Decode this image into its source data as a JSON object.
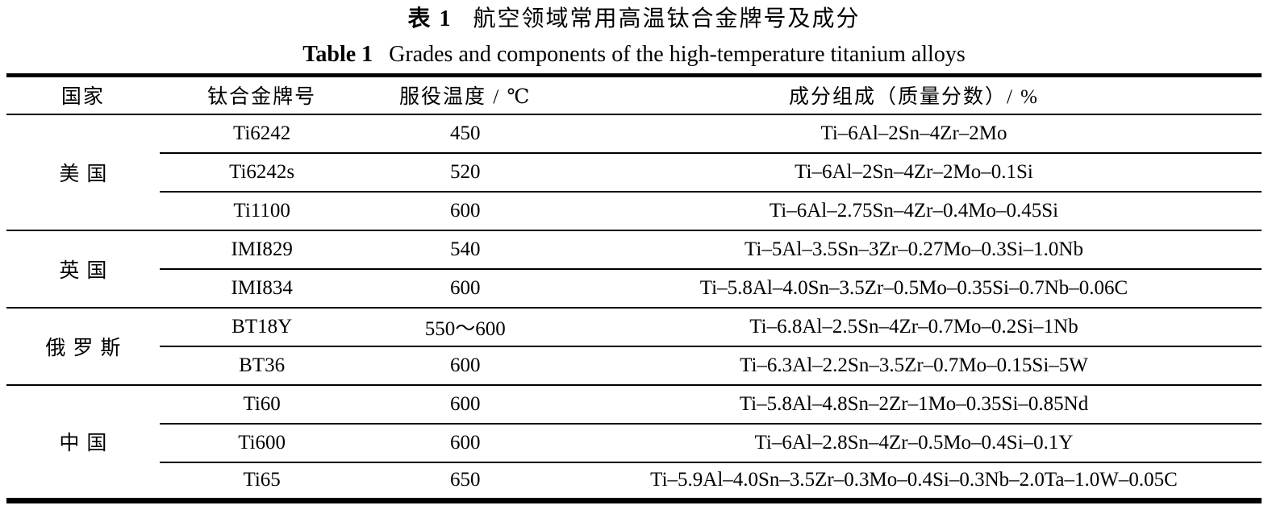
{
  "title": {
    "zh_label": "表 1",
    "zh_text": "航空领域常用高温钛合金牌号及成分",
    "en_label": "Table 1",
    "en_text": "Grades and components of the high-temperature titanium alloys"
  },
  "table": {
    "headers": [
      "国家",
      "钛合金牌号",
      "服役温度 / ℃",
      "成分组成（质量分数）/ %"
    ],
    "groups": [
      {
        "country": "美国",
        "rows": [
          {
            "grade": "Ti6242",
            "temp": "450",
            "composition": "Ti–6Al–2Sn–4Zr–2Mo"
          },
          {
            "grade": "Ti6242s",
            "temp": "520",
            "composition": "Ti–6Al–2Sn–4Zr–2Mo–0.1Si"
          },
          {
            "grade": "Ti1100",
            "temp": "600",
            "composition": "Ti–6Al–2.75Sn–4Zr–0.4Mo–0.45Si"
          }
        ]
      },
      {
        "country": "英国",
        "rows": [
          {
            "grade": "IMI829",
            "temp": "540",
            "composition": "Ti–5Al–3.5Sn–3Zr–0.27Mo–0.3Si–1.0Nb"
          },
          {
            "grade": "IMI834",
            "temp": "600",
            "composition": "Ti–5.8Al–4.0Sn–3.5Zr–0.5Mo–0.35Si–0.7Nb–0.06C"
          }
        ]
      },
      {
        "country": "俄罗斯",
        "rows": [
          {
            "grade": "BT18Y",
            "temp": "550～600",
            "composition": "Ti–6.8Al–2.5Sn–4Zr–0.7Mo–0.2Si–1Nb"
          },
          {
            "grade": "BT36",
            "temp": "600",
            "composition": "Ti–6.3Al–2.2Sn–3.5Zr–0.7Mo–0.15Si–5W"
          }
        ]
      },
      {
        "country": "中国",
        "rows": [
          {
            "grade": "Ti60",
            "temp": "600",
            "composition": "Ti–5.8Al–4.8Sn–2Zr–1Mo–0.35Si–0.85Nd"
          },
          {
            "grade": "Ti600",
            "temp": "600",
            "composition": "Ti–6Al–2.8Sn–4Zr–0.5Mo–0.4Si–0.1Y"
          },
          {
            "grade": "Ti65",
            "temp": "650",
            "composition": "Ti–5.9Al–4.0Sn–3.5Zr–0.3Mo–0.4Si–0.3Nb–2.0Ta–1.0W–0.05C"
          }
        ]
      }
    ]
  }
}
